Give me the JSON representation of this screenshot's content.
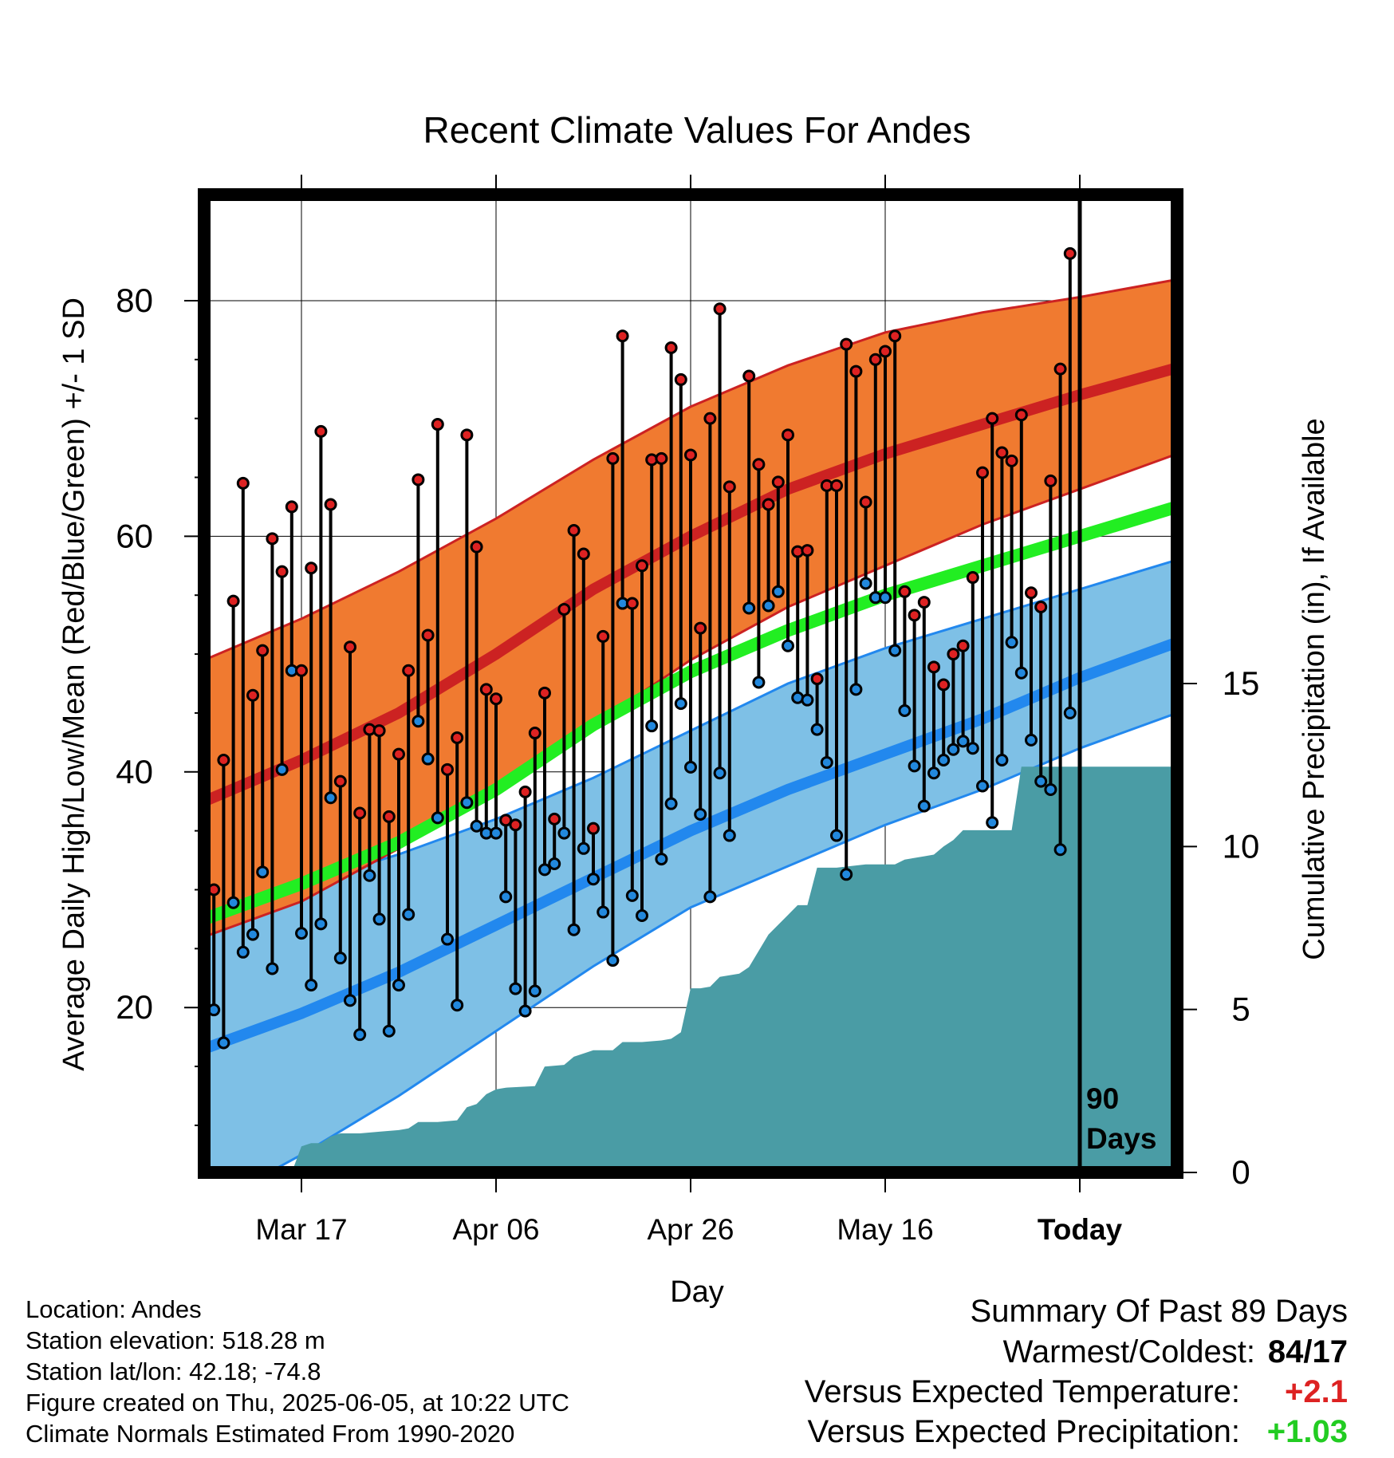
{
  "chart_data": {
    "type": "line",
    "title": "Recent Climate Values For Andes",
    "xlabel": "Day",
    "ylabel": "Average Daily High/Low/Mean (Red/Blue/Green) +/- 1 SD",
    "y2label": "Cumulative Precipitation (in), If Available",
    "xlim": [
      0,
      100
    ],
    "ylim": [
      6,
      89
    ],
    "y2lim": [
      0,
      30
    ],
    "x_ticks": [
      {
        "x": 10,
        "label": "Mar 17"
      },
      {
        "x": 30,
        "label": "Apr 06"
      },
      {
        "x": 50,
        "label": "Apr 26"
      },
      {
        "x": 70,
        "label": "May 16"
      },
      {
        "x": 90,
        "label": "Today"
      }
    ],
    "y_ticks": [
      20,
      40,
      60,
      80
    ],
    "y2_ticks": [
      0,
      5,
      10,
      15
    ],
    "grid": true,
    "today_label": [
      "90",
      "Days"
    ],
    "bands": {
      "high_upper": [
        [
          0,
          49.5
        ],
        [
          10,
          53
        ],
        [
          20,
          57
        ],
        [
          30,
          61.5
        ],
        [
          40,
          66.5
        ],
        [
          50,
          71
        ],
        [
          60,
          74.5
        ],
        [
          70,
          77.3
        ],
        [
          80,
          79
        ],
        [
          90,
          80.3
        ],
        [
          100,
          81.8
        ]
      ],
      "high_mean": [
        [
          0,
          37.5
        ],
        [
          10,
          41
        ],
        [
          20,
          45
        ],
        [
          30,
          50
        ],
        [
          40,
          55.5
        ],
        [
          50,
          60
        ],
        [
          60,
          64
        ],
        [
          70,
          67
        ],
        [
          80,
          69.5
        ],
        [
          90,
          72
        ],
        [
          100,
          74.3
        ]
      ],
      "high_lower": [
        [
          0,
          26
        ],
        [
          10,
          29
        ],
        [
          20,
          33.5
        ],
        [
          30,
          38.5
        ],
        [
          40,
          44
        ],
        [
          50,
          49.5
        ],
        [
          60,
          54
        ],
        [
          70,
          57.5
        ],
        [
          80,
          61
        ],
        [
          90,
          64
        ],
        [
          100,
          67
        ]
      ],
      "mean": [
        [
          0,
          27.5
        ],
        [
          10,
          30.5
        ],
        [
          20,
          34
        ],
        [
          30,
          38.5
        ],
        [
          40,
          44
        ],
        [
          50,
          48.5
        ],
        [
          60,
          52
        ],
        [
          70,
          55
        ],
        [
          80,
          57.5
        ],
        [
          90,
          60
        ],
        [
          100,
          62.5
        ]
      ],
      "low_upper": [
        [
          0,
          28
        ],
        [
          10,
          30.5
        ],
        [
          20,
          33
        ],
        [
          30,
          36
        ],
        [
          40,
          39.5
        ],
        [
          50,
          43.5
        ],
        [
          60,
          47.5
        ],
        [
          70,
          50.5
        ],
        [
          80,
          53
        ],
        [
          90,
          55.5
        ],
        [
          100,
          58
        ]
      ],
      "low_mean": [
        [
          0,
          16.5
        ],
        [
          10,
          19.5
        ],
        [
          20,
          23
        ],
        [
          30,
          27
        ],
        [
          40,
          31
        ],
        [
          50,
          35
        ],
        [
          60,
          38.5
        ],
        [
          70,
          41.5
        ],
        [
          80,
          44.5
        ],
        [
          90,
          48
        ],
        [
          100,
          51
        ]
      ],
      "low_lower": [
        [
          0,
          3
        ],
        [
          10,
          7.5
        ],
        [
          20,
          12.5
        ],
        [
          30,
          18
        ],
        [
          40,
          23.5
        ],
        [
          50,
          28.5
        ],
        [
          60,
          32
        ],
        [
          70,
          35.5
        ],
        [
          80,
          38.5
        ],
        [
          90,
          42
        ],
        [
          100,
          45
        ]
      ]
    },
    "series": [
      {
        "name": "High",
        "color": "#dd2222",
        "values": [
          [
            0,
            33.5
          ],
          [
            1,
            30
          ],
          [
            2,
            41
          ],
          [
            3,
            54.5
          ],
          [
            4,
            64.5
          ],
          [
            5,
            46.5
          ],
          [
            6,
            50.3
          ],
          [
            7,
            59.8
          ],
          [
            8,
            57
          ],
          [
            9,
            62.5
          ],
          [
            10,
            48.6
          ],
          [
            11,
            57.3
          ],
          [
            12,
            68.9
          ],
          [
            13,
            62.7
          ],
          [
            14,
            39.2
          ],
          [
            15,
            50.6
          ],
          [
            16,
            36.5
          ],
          [
            17,
            43.6
          ],
          [
            18,
            43.5
          ],
          [
            19,
            36.2
          ],
          [
            20,
            41.5
          ],
          [
            21,
            48.6
          ],
          [
            22,
            64.8
          ],
          [
            23,
            51.6
          ],
          [
            24,
            69.5
          ],
          [
            25,
            40.2
          ],
          [
            26,
            42.9
          ],
          [
            27,
            68.6
          ],
          [
            28,
            59.1
          ],
          [
            29,
            47
          ],
          [
            30,
            46.2
          ],
          [
            31,
            35.9
          ],
          [
            32,
            35.5
          ],
          [
            33,
            38.3
          ],
          [
            34,
            43.3
          ],
          [
            35,
            46.7
          ],
          [
            36,
            36
          ],
          [
            37,
            53.8
          ],
          [
            38,
            60.5
          ],
          [
            39,
            58.5
          ],
          [
            40,
            35.2
          ],
          [
            41,
            51.5
          ],
          [
            42,
            66.6
          ],
          [
            43,
            77
          ],
          [
            44,
            54.3
          ],
          [
            45,
            57.5
          ],
          [
            46,
            66.5
          ],
          [
            47,
            66.6
          ],
          [
            48,
            76
          ],
          [
            49,
            73.3
          ],
          [
            50,
            66.9
          ],
          [
            51,
            52.2
          ],
          [
            52,
            70
          ],
          [
            53,
            79.3
          ],
          [
            54,
            64.2
          ],
          [
            56,
            73.6
          ],
          [
            57,
            66.1
          ],
          [
            58,
            62.7
          ],
          [
            59,
            64.6
          ],
          [
            60,
            68.6
          ],
          [
            61,
            58.7
          ],
          [
            62,
            58.8
          ],
          [
            63,
            47.9
          ],
          [
            64,
            64.3
          ],
          [
            65,
            64.3
          ],
          [
            66,
            76.3
          ],
          [
            67,
            74
          ],
          [
            68,
            62.9
          ],
          [
            69,
            75
          ],
          [
            70,
            75.7
          ],
          [
            71,
            77
          ],
          [
            72,
            55.3
          ],
          [
            73,
            53.3
          ],
          [
            74,
            54.4
          ],
          [
            75,
            48.9
          ],
          [
            76,
            47.4
          ],
          [
            77,
            50
          ],
          [
            78,
            50.7
          ],
          [
            79,
            56.5
          ],
          [
            80,
            65.4
          ],
          [
            81,
            70
          ],
          [
            82,
            67.1
          ],
          [
            83,
            66.4
          ],
          [
            84,
            70.3
          ],
          [
            85,
            55.2
          ],
          [
            86,
            54
          ],
          [
            87,
            64.7
          ],
          [
            88,
            74.2
          ],
          [
            89,
            84
          ]
        ]
      },
      {
        "name": "Low",
        "color": "#2288dd",
        "values": [
          [
            0,
            23
          ],
          [
            1,
            19.8
          ],
          [
            2,
            17
          ],
          [
            3,
            28.9
          ],
          [
            4,
            24.7
          ],
          [
            5,
            26.2
          ],
          [
            6,
            31.5
          ],
          [
            7,
            23.3
          ],
          [
            8,
            40.2
          ],
          [
            9,
            48.6
          ],
          [
            10,
            26.3
          ],
          [
            11,
            21.9
          ],
          [
            12,
            27.1
          ],
          [
            13,
            37.8
          ],
          [
            14,
            24.2
          ],
          [
            15,
            20.6
          ],
          [
            16,
            17.7
          ],
          [
            17,
            31.2
          ],
          [
            18,
            27.5
          ],
          [
            19,
            18
          ],
          [
            20,
            21.9
          ],
          [
            21,
            27.9
          ],
          [
            22,
            44.3
          ],
          [
            23,
            41.1
          ],
          [
            24,
            36.1
          ],
          [
            25,
            25.8
          ],
          [
            26,
            20.2
          ],
          [
            27,
            37.4
          ],
          [
            28,
            35.4
          ],
          [
            29,
            34.8
          ],
          [
            30,
            34.8
          ],
          [
            31,
            29.4
          ],
          [
            32,
            21.6
          ],
          [
            33,
            19.7
          ],
          [
            34,
            21.4
          ],
          [
            35,
            31.7
          ],
          [
            36,
            32.2
          ],
          [
            37,
            34.8
          ],
          [
            38,
            26.6
          ],
          [
            39,
            33.5
          ],
          [
            40,
            30.9
          ],
          [
            41,
            28.1
          ],
          [
            42,
            24
          ],
          [
            43,
            54.3
          ],
          [
            44,
            29.5
          ],
          [
            45,
            27.8
          ],
          [
            46,
            43.9
          ],
          [
            47,
            32.6
          ],
          [
            48,
            37.3
          ],
          [
            49,
            45.8
          ],
          [
            50,
            40.4
          ],
          [
            51,
            36.4
          ],
          [
            52,
            29.4
          ],
          [
            53,
            39.9
          ],
          [
            54,
            34.6
          ],
          [
            56,
            53.9
          ],
          [
            57,
            47.6
          ],
          [
            58,
            54.1
          ],
          [
            59,
            55.3
          ],
          [
            60,
            50.7
          ],
          [
            61,
            46.3
          ],
          [
            62,
            46.1
          ],
          [
            63,
            43.6
          ],
          [
            64,
            40.8
          ],
          [
            65,
            34.6
          ],
          [
            66,
            31.3
          ],
          [
            67,
            47
          ],
          [
            68,
            56
          ],
          [
            69,
            54.8
          ],
          [
            70,
            54.8
          ],
          [
            71,
            50.3
          ],
          [
            72,
            45.2
          ],
          [
            73,
            40.5
          ],
          [
            74,
            37.1
          ],
          [
            75,
            39.9
          ],
          [
            76,
            41
          ],
          [
            77,
            41.9
          ],
          [
            78,
            42.6
          ],
          [
            79,
            42
          ],
          [
            80,
            38.8
          ],
          [
            81,
            35.7
          ],
          [
            82,
            41
          ],
          [
            83,
            51
          ],
          [
            84,
            48.4
          ],
          [
            85,
            42.7
          ],
          [
            86,
            39.2
          ],
          [
            87,
            38.5
          ],
          [
            88,
            33.4
          ],
          [
            89,
            45
          ]
        ]
      },
      {
        "name": "Cumulative Precipitation",
        "color": "#4a9ca5",
        "axis": "y2",
        "values": [
          [
            0,
            0
          ],
          [
            9,
            0
          ],
          [
            10,
            0.8
          ],
          [
            11,
            0.9
          ],
          [
            12,
            0.9
          ],
          [
            13,
            1.1
          ],
          [
            14,
            1.2
          ],
          [
            16,
            1.2
          ],
          [
            18,
            1.25
          ],
          [
            20,
            1.3
          ],
          [
            21,
            1.35
          ],
          [
            22,
            1.55
          ],
          [
            24,
            1.55
          ],
          [
            26,
            1.6
          ],
          [
            27,
            2.0
          ],
          [
            28,
            2.1
          ],
          [
            29,
            2.4
          ],
          [
            30,
            2.55
          ],
          [
            31,
            2.6
          ],
          [
            34,
            2.65
          ],
          [
            35,
            3.25
          ],
          [
            37,
            3.3
          ],
          [
            38,
            3.55
          ],
          [
            40,
            3.75
          ],
          [
            42,
            3.75
          ],
          [
            43,
            4.0
          ],
          [
            45,
            4.0
          ],
          [
            47,
            4.05
          ],
          [
            48,
            4.1
          ],
          [
            49,
            4.3
          ],
          [
            50,
            5.65
          ],
          [
            51,
            5.65
          ],
          [
            52,
            5.7
          ],
          [
            53,
            6.0
          ],
          [
            55,
            6.1
          ],
          [
            56,
            6.3
          ],
          [
            58,
            7.3
          ],
          [
            60,
            7.9
          ],
          [
            61,
            8.2
          ],
          [
            62,
            8.2
          ],
          [
            63,
            9.35
          ],
          [
            65,
            9.35
          ],
          [
            68,
            9.45
          ],
          [
            71,
            9.45
          ],
          [
            72,
            9.6
          ],
          [
            74,
            9.7
          ],
          [
            75,
            9.75
          ],
          [
            76,
            10.0
          ],
          [
            77,
            10.2
          ],
          [
            78,
            10.5
          ],
          [
            79,
            10.5
          ],
          [
            83,
            10.5
          ],
          [
            84,
            12.45
          ],
          [
            88,
            12.45
          ],
          [
            89,
            12.45
          ],
          [
            100,
            12.45
          ]
        ]
      }
    ]
  },
  "info": {
    "location": "Location: Andes",
    "elevation": "Station elevation: 518.28 m",
    "latlon": "Station lat/lon: 42.18; -74.8",
    "created": "Figure created on Thu, 2025-06-05, at 10:22 UTC",
    "normals": "Climate Normals Estimated From 1990-2020"
  },
  "summary": {
    "title": "Summary Of Past 89 Days",
    "warmest_coldest_label": "Warmest/Coldest:",
    "warmest_coldest_value": "84/17",
    "temp_label": "Versus Expected Temperature:",
    "temp_value": "+2.1",
    "precip_label": "Versus Expected Precipitation:",
    "precip_value": "+1.03"
  },
  "colors": {
    "high_band": "#f07a30",
    "high_line": "#cc2222",
    "low_band": "#7ec0e6",
    "low_line": "#2288ee",
    "mean_line": "#22ee22",
    "precip": "#4a9ca5"
  }
}
